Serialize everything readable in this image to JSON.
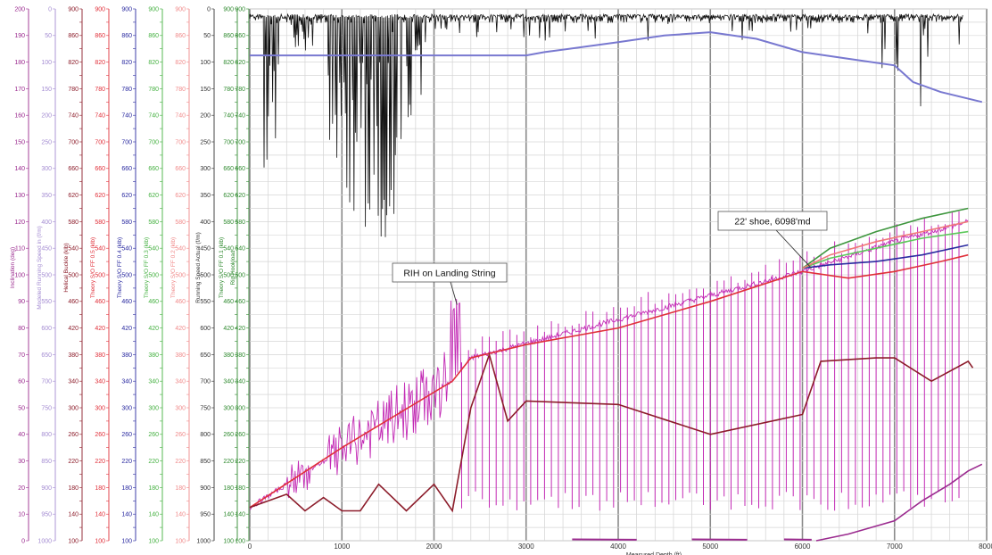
{
  "chart_data": {
    "type": "line",
    "title": "",
    "xlabel": "Measured Depth (ft)",
    "x_ticks": [
      0,
      1000,
      2000,
      3000,
      4000,
      5000,
      6000,
      7000,
      8000
    ],
    "xlim": [
      0,
      8000
    ],
    "grid": true,
    "legend": "none",
    "axes": [
      {
        "name": "Inclination (deg)",
        "color": "#9b2b8f",
        "ticks": [
          0,
          10,
          20,
          30,
          40,
          50,
          60,
          70,
          80,
          90,
          100,
          110,
          120,
          130,
          140,
          150,
          160,
          170,
          180,
          190,
          200
        ]
      },
      {
        "name": "Modeled Running Speed in (f/m)",
        "color": "#a48cd2",
        "ticks": [
          1000,
          950,
          900,
          850,
          800,
          750,
          700,
          650,
          600,
          550,
          500,
          450,
          400,
          350,
          300,
          250,
          200,
          150,
          100,
          50,
          0
        ]
      },
      {
        "name": "Helical Buckle (klb)",
        "color": "#8c1c2a",
        "ticks": [
          100,
          120,
          140,
          160,
          180,
          200,
          220,
          240,
          260,
          280,
          300,
          320,
          340,
          360,
          380,
          400,
          420,
          440,
          460,
          480,
          500,
          520,
          540,
          560,
          580,
          600,
          620,
          640,
          660,
          680,
          700,
          720,
          740,
          760,
          780,
          800,
          820,
          840,
          860,
          880,
          900
        ]
      },
      {
        "name": "Theory S/O FF 0.5 (klb)",
        "color": "#e0303a",
        "ticks": [
          100,
          120,
          140,
          160,
          180,
          200,
          220,
          240,
          260,
          280,
          300,
          320,
          340,
          360,
          380,
          400,
          420,
          440,
          460,
          480,
          500,
          520,
          540,
          560,
          580,
          600,
          620,
          640,
          660,
          680,
          700,
          720,
          740,
          760,
          780,
          800,
          820,
          840,
          860,
          880,
          900
        ]
      },
      {
        "name": "Theory S/O FF 0.4 (klb)",
        "color": "#2a2aa0",
        "ticks": [
          100,
          120,
          140,
          160,
          180,
          200,
          220,
          240,
          260,
          280,
          300,
          320,
          340,
          360,
          380,
          400,
          420,
          440,
          460,
          480,
          500,
          520,
          540,
          560,
          580,
          600,
          620,
          640,
          660,
          680,
          700,
          720,
          740,
          760,
          780,
          800,
          820,
          840,
          860,
          880,
          900
        ]
      },
      {
        "name": "Theory S/O FF 0.3 (klb)",
        "color": "#44b040",
        "ticks": [
          100,
          120,
          140,
          160,
          180,
          200,
          220,
          240,
          260,
          280,
          300,
          320,
          340,
          360,
          380,
          400,
          420,
          440,
          460,
          480,
          500,
          520,
          540,
          560,
          580,
          600,
          620,
          640,
          660,
          680,
          700,
          720,
          740,
          760,
          780,
          800,
          820,
          840,
          860,
          880,
          900
        ]
      },
      {
        "name": "Theory S/O FF 0.2 (klb)",
        "color": "#f08a8a",
        "ticks": [
          100,
          120,
          140,
          160,
          180,
          200,
          220,
          240,
          260,
          280,
          300,
          320,
          340,
          360,
          380,
          400,
          420,
          440,
          460,
          480,
          500,
          520,
          540,
          560,
          580,
          600,
          620,
          640,
          660,
          680,
          700,
          720,
          740,
          760,
          780,
          800,
          820,
          840,
          860,
          880,
          900
        ]
      },
      {
        "name": "Running Speed Actual (f/m)",
        "color": "#333333",
        "ticks": [
          1000,
          950,
          900,
          850,
          800,
          750,
          700,
          650,
          600,
          550,
          500,
          450,
          400,
          350,
          300,
          250,
          200,
          150,
          100,
          50,
          0
        ]
      },
      {
        "name": "Theory S/O FF 0.1 (klb)",
        "color": "#2f8a2f",
        "ticks": [
          100,
          120,
          140,
          160,
          180,
          200,
          220,
          240,
          260,
          280,
          300,
          320,
          340,
          360,
          380,
          400,
          420,
          440,
          460,
          480,
          500,
          520,
          540,
          560,
          580,
          600,
          620,
          640,
          660,
          680,
          700,
          720,
          740,
          760,
          780,
          800,
          820,
          840,
          860,
          880,
          900
        ]
      },
      {
        "name": "Rig Hookload",
        "color": "#2f8a2f",
        "ticks": [
          100,
          120,
          140,
          160,
          180,
          200,
          220,
          240,
          260,
          280,
          300,
          320,
          340,
          360,
          380,
          400,
          420,
          440,
          460,
          480,
          500,
          520,
          540,
          560,
          580,
          600,
          620,
          640,
          660,
          680,
          700,
          720,
          740,
          760,
          780,
          800,
          820,
          840,
          860,
          880,
          900
        ]
      }
    ],
    "primary_y": {
      "axis": "Rig Hookload",
      "ylim": [
        100,
        900
      ]
    },
    "series": [
      {
        "axis": "Rig Hookload",
        "color": "#e0303a",
        "x": [
          0,
          1000,
          2200,
          2400,
          3000,
          4000,
          5000,
          6000,
          6500,
          7000,
          7500,
          7800
        ],
        "y": [
          150,
          240,
          340,
          375,
          395,
          420,
          460,
          505,
          495,
          505,
          520,
          530
        ]
      },
      {
        "axis": "Rig Hookload",
        "color": "#2a2aa0",
        "x": [
          6000,
          6300,
          6800,
          7300,
          7800
        ],
        "y": [
          510,
          515,
          520,
          530,
          545
        ]
      },
      {
        "axis": "Rig Hookload",
        "color": "#5cc85a",
        "x": [
          6000,
          6300,
          6800,
          7300,
          7800
        ],
        "y": [
          510,
          525,
          540,
          555,
          565
        ]
      },
      {
        "axis": "Rig Hookload",
        "color": "#3e963e",
        "x": [
          6000,
          6300,
          6800,
          7300,
          7800
        ],
        "y": [
          510,
          540,
          565,
          585,
          600
        ]
      },
      {
        "axis": "Rig Hookload",
        "color": "#f07878",
        "x": [
          6000,
          6300,
          6800,
          7300,
          7800
        ],
        "y": [
          510,
          530,
          550,
          565,
          580
        ]
      },
      {
        "axis": "Rig Hookload",
        "color": "#8c1c2a",
        "x": [
          0,
          400,
          600,
          800,
          1000,
          1200,
          1400,
          1700,
          2000,
          2200,
          2400,
          2600,
          2800,
          3000,
          4000,
          5000,
          6000,
          6200,
          6800,
          7000,
          7400,
          7800,
          7850
        ],
        "y": [
          150,
          170,
          145,
          165,
          145,
          145,
          185,
          145,
          185,
          145,
          300,
          380,
          280,
          310,
          305,
          260,
          290,
          370,
          375,
          375,
          340,
          370,
          360
        ]
      },
      {
        "axis": "Rig Hookload",
        "color": "#9b2b8f",
        "x": [
          6150,
          6500,
          7000,
          7300,
          7600,
          7800,
          7950
        ],
        "y": [
          100,
          110,
          130,
          160,
          185,
          205,
          215
        ]
      },
      {
        "axis": "Rig Hookload",
        "color": "#7878d0",
        "x": [
          0,
          3000,
          3200,
          4000,
          4500,
          5000,
          5500,
          6000,
          6500,
          7000,
          7200,
          7500,
          7950
        ],
        "y": [
          830,
          830,
          835,
          850,
          860,
          865,
          855,
          835,
          825,
          815,
          790,
          775,
          760
        ]
      }
    ],
    "annotations": [
      {
        "text": "RIH on Landing String",
        "x": 2250,
        "y": 455
      },
      {
        "text": "22' shoe, 6098'md",
        "x": 6098,
        "y": 510
      }
    ]
  }
}
